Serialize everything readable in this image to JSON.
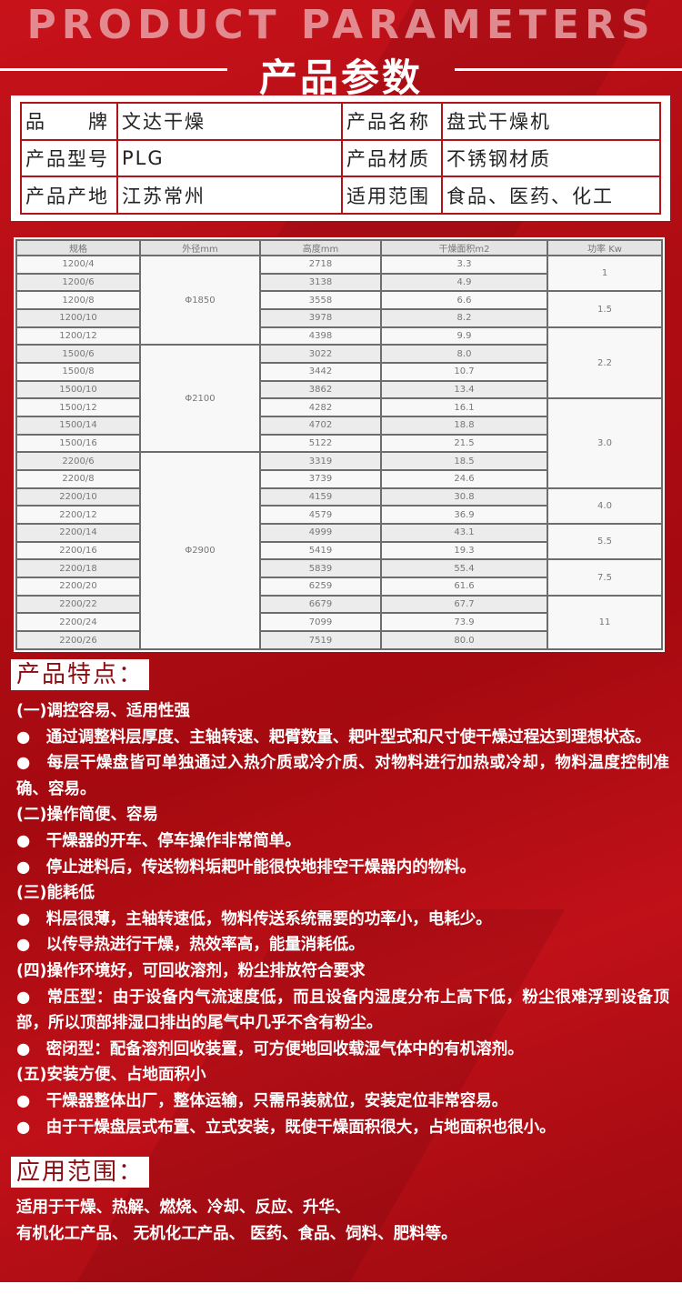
{
  "header": {
    "en_title": "PRODUCT PARAMETERS",
    "cn_title": "产品参数"
  },
  "info": [
    [
      "品　　牌",
      "文达干燥",
      "产品名称",
      "盘式干燥机"
    ],
    [
      "产品型号",
      "PLG",
      "产品材质",
      "不锈钢材质"
    ],
    [
      "产品产地",
      "江苏常州",
      "适用范围",
      "食品、医药、化工"
    ]
  ],
  "spec": {
    "headers": [
      "规格",
      "外径mm",
      "高度mm",
      "干燥面积m2",
      "功率 Kw"
    ],
    "rows": [
      [
        "1200/4",
        "2718",
        "3.3"
      ],
      [
        "1200/6",
        "3138",
        "4.9"
      ],
      [
        "1200/8",
        "3558",
        "6.6"
      ],
      [
        "1200/10",
        "3978",
        "8.2"
      ],
      [
        "1200/12",
        "4398",
        "9.9"
      ],
      [
        "1500/6",
        "3022",
        "8.0"
      ],
      [
        "1500/8",
        "3442",
        "10.7"
      ],
      [
        "1500/10",
        "3862",
        "13.4"
      ],
      [
        "1500/12",
        "4282",
        "16.1"
      ],
      [
        "1500/14",
        "4702",
        "18.8"
      ],
      [
        "1500/16",
        "5122",
        "21.5"
      ],
      [
        "2200/6",
        "3319",
        "18.5"
      ],
      [
        "2200/8",
        "3739",
        "24.6"
      ],
      [
        "2200/10",
        "4159",
        "30.8"
      ],
      [
        "2200/12",
        "4579",
        "36.9"
      ],
      [
        "2200/14",
        "4999",
        "43.1"
      ],
      [
        "2200/16",
        "5419",
        "19.3"
      ],
      [
        "2200/18",
        "5839",
        "55.4"
      ],
      [
        "2200/20",
        "6259",
        "61.6"
      ],
      [
        "2200/22",
        "6679",
        "67.7"
      ],
      [
        "2200/24",
        "7099",
        "73.9"
      ],
      [
        "2200/26",
        "7519",
        "80.0"
      ]
    ],
    "diameters": [
      {
        "value": "Φ1850",
        "rows": 5
      },
      {
        "value": "Φ2100",
        "rows": 6
      },
      {
        "value": "Φ2900",
        "rows": 11
      }
    ],
    "power": [
      {
        "value": "1",
        "rows": 2
      },
      {
        "value": "1.5",
        "rows": 2
      },
      {
        "value": "2.2",
        "rows": 4
      },
      {
        "value": "3.0",
        "rows": 5
      },
      {
        "value": "4.0",
        "rows": 2
      },
      {
        "value": "5.5",
        "rows": 2
      },
      {
        "value": "7.5",
        "rows": 2
      },
      {
        "value": "11",
        "rows": 3
      }
    ]
  },
  "features": {
    "title": "产品特点：",
    "lines": [
      "(一)调控容易、适用性强",
      "●　通过调整料层厚度、主轴转速、耙臂数量、耙叶型式和尺寸使干燥过程达到理想状态。",
      "●　每层干燥盘皆可单独通过入热介质或冷介质、对物料进行加热或冷却，物料温度控制准确、容易。",
      "(二)操作简便、容易",
      "●　干燥器的开车、停车操作非常简单。",
      "●　停止进料后，传送物料垢耙叶能很快地排空干燥器内的物料。",
      "(三)能耗低",
      "●　料层很薄，主轴转速低，物料传送系统需要的功率小，电耗少。",
      "●　以传导热进行干燥，热效率高，能量消耗低。",
      "(四)操作环境好，可回收溶剂，粉尘排放符合要求",
      "●　常压型：由于设备内气流速度低，而且设备内湿度分布上高下低，粉尘很难浮到设备顶部，所以顶部排湿口排出的尾气中几乎不含有粉尘。",
      "●　密闭型：配备溶剂回收装置，可方便地回收载湿气体中的有机溶剂。",
      "(五)安装方便、占地面积小",
      "●　干燥器整体出厂，整体运输，只需吊装就位，安装定位非常容易。",
      "●　由于干燥盘层式布置、立式安装，既使干燥面积很大，占地面积也很小。"
    ]
  },
  "applications": {
    "title": "应用范围：",
    "lines": [
      "适用于干燥、热解、燃烧、冷却、反应、升华、",
      "有机化工产品、 无机化工产品、 医药、食品、饲料、肥料等。"
    ]
  },
  "colors": {
    "background": "#b00d14",
    "accent": "#8a0c12"
  }
}
